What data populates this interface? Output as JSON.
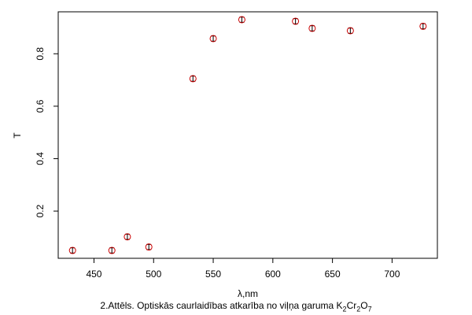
{
  "chart_data": {
    "type": "scatter",
    "xlabel": "λ,nm",
    "ylabel": "T",
    "xlim": [
      420,
      738
    ],
    "ylim": [
      0.02,
      0.96
    ],
    "x_ticks": [
      450,
      500,
      550,
      600,
      650,
      700
    ],
    "y_ticks": [
      0.2,
      0.4,
      0.6,
      0.8
    ],
    "grid": false,
    "legend": "none",
    "caption": {
      "main": "2.Attēls. Optiskās caurlaidības atkarība no viļņa garuma K",
      "sub1": "2",
      "mid": "Cr",
      "sub2": "2",
      "end": "O",
      "sub3": "7"
    },
    "series": [
      {
        "marker_color": "#cc0000",
        "errorbar_color": "#000000",
        "points": [
          {
            "x": 432,
            "y": 0.05,
            "err": 0.01
          },
          {
            "x": 465,
            "y": 0.05,
            "err": 0.01
          },
          {
            "x": 478,
            "y": 0.102,
            "err": 0.01
          },
          {
            "x": 496,
            "y": 0.063,
            "err": 0.01
          },
          {
            "x": 533,
            "y": 0.705,
            "err": 0.01
          },
          {
            "x": 550,
            "y": 0.858,
            "err": 0.01
          },
          {
            "x": 574,
            "y": 0.93,
            "err": 0.01
          },
          {
            "x": 619,
            "y": 0.924,
            "err": 0.01
          },
          {
            "x": 633,
            "y": 0.897,
            "err": 0.01
          },
          {
            "x": 665,
            "y": 0.888,
            "err": 0.01
          },
          {
            "x": 726,
            "y": 0.905,
            "err": 0.01
          }
        ]
      }
    ]
  }
}
